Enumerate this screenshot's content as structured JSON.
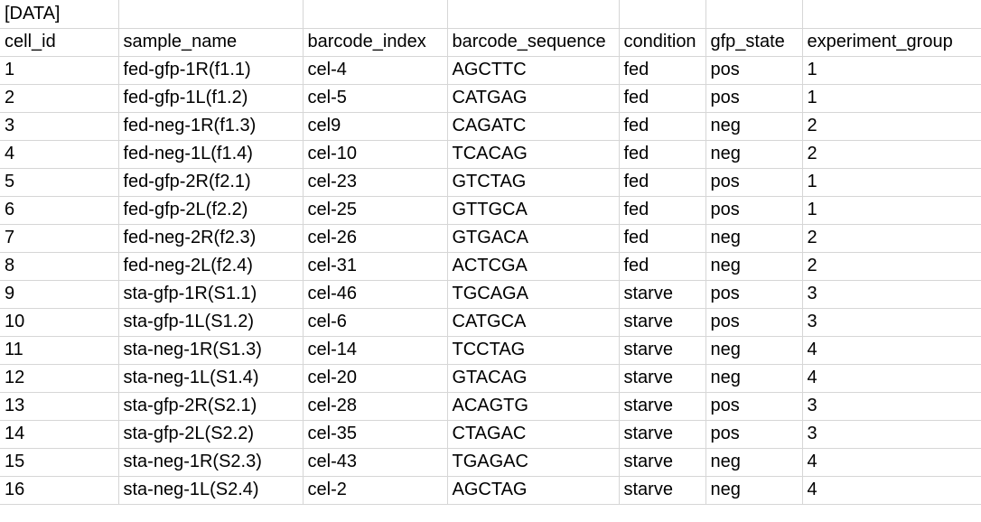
{
  "sheet": {
    "title_cell": "[DATA]",
    "headers": [
      "cell_id",
      "sample_name",
      "barcode_index",
      "barcode_sequence",
      "condition",
      "gfp_state",
      "experiment_group"
    ],
    "rows": [
      [
        "1",
        "fed-gfp-1R(f1.1)",
        "cel-4",
        "AGCTTC",
        "fed",
        "pos",
        "1"
      ],
      [
        "2",
        "fed-gfp-1L(f1.2)",
        "cel-5",
        "CATGAG",
        "fed",
        "pos",
        "1"
      ],
      [
        "3",
        "fed-neg-1R(f1.3)",
        "cel9",
        "CAGATC",
        "fed",
        "neg",
        "2"
      ],
      [
        "4",
        "fed-neg-1L(f1.4)",
        "cel-10",
        "TCACAG",
        "fed",
        "neg",
        "2"
      ],
      [
        "5",
        "fed-gfp-2R(f2.1)",
        "cel-23",
        "GTCTAG",
        "fed",
        "pos",
        "1"
      ],
      [
        "6",
        "fed-gfp-2L(f2.2)",
        "cel-25",
        "GTTGCA",
        "fed",
        "pos",
        "1"
      ],
      [
        "7",
        "fed-neg-2R(f2.3)",
        "cel-26",
        "GTGACA",
        "fed",
        "neg",
        "2"
      ],
      [
        "8",
        "fed-neg-2L(f2.4)",
        "cel-31",
        "ACTCGA",
        "fed",
        "neg",
        "2"
      ],
      [
        "9",
        "sta-gfp-1R(S1.1)",
        "cel-46",
        "TGCAGA",
        "starve",
        "pos",
        "3"
      ],
      [
        "10",
        "sta-gfp-1L(S1.2)",
        "cel-6",
        "CATGCA",
        "starve",
        "pos",
        "3"
      ],
      [
        "11",
        "sta-neg-1R(S1.3)",
        "cel-14",
        "TCCTAG",
        "starve",
        "neg",
        "4"
      ],
      [
        "12",
        "sta-neg-1L(S1.4)",
        "cel-20",
        "GTACAG",
        "starve",
        "neg",
        "4"
      ],
      [
        "13",
        "sta-gfp-2R(S2.1)",
        "cel-28",
        "ACAGTG",
        "starve",
        "pos",
        "3"
      ],
      [
        "14",
        "sta-gfp-2L(S2.2)",
        "cel-35",
        "CTAGAC",
        "starve",
        "pos",
        "3"
      ],
      [
        "15",
        "sta-neg-1R(S2.3)",
        "cel-43",
        "TGAGAC",
        "starve",
        "neg",
        "4"
      ],
      [
        "16",
        "sta-neg-1L(S2.4)",
        "cel-2",
        "AGCTAG",
        "starve",
        "neg",
        "4"
      ]
    ],
    "colors": {
      "gridline": "#d6d6d6",
      "text": "#000000",
      "background": "#ffffff"
    }
  }
}
